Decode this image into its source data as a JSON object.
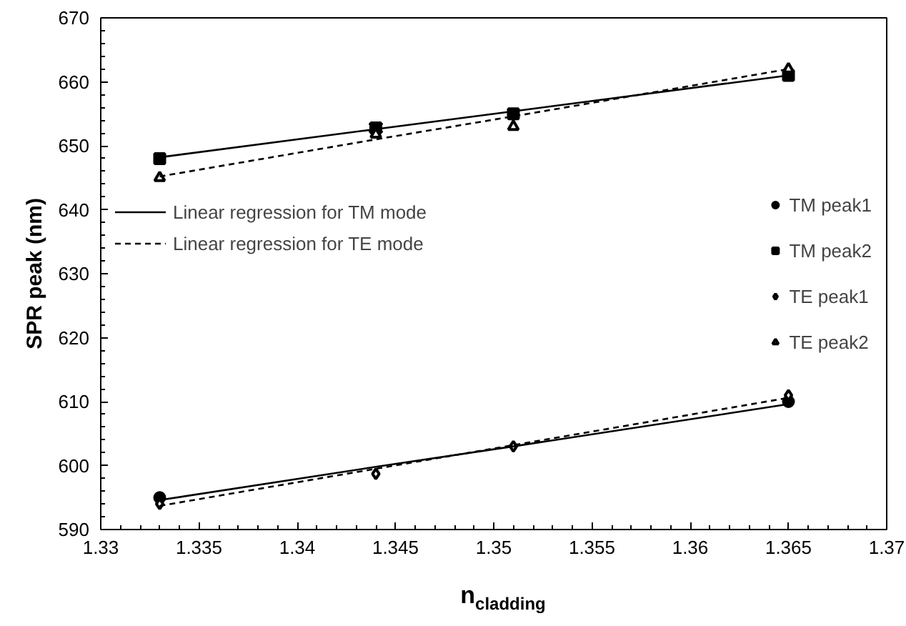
{
  "chart_data": {
    "type": "scatter",
    "xlabel": "n$_{cladding}$",
    "ylabel": "SPR peak (nm)",
    "x": [
      1.333,
      1.344,
      1.351,
      1.365
    ],
    "series": [
      {
        "name": "TM peak1",
        "color": "#000000",
        "marker": "circle",
        "values": [
          595,
          null,
          null,
          610
        ]
      },
      {
        "name": "TM peak2",
        "color": "#000000",
        "marker": "square",
        "values": [
          648,
          652.8,
          655,
          661
        ],
        "errors": [
          null,
          0.6,
          null,
          null
        ]
      },
      {
        "name": "TE peak1",
        "color": "#000000",
        "marker": "diamond",
        "values": [
          594,
          598.7,
          603,
          611
        ]
      },
      {
        "name": "TE peak2",
        "color": "#000000",
        "marker": "triangle",
        "values": [
          645,
          651.8,
          653,
          662
        ]
      },
      {
        "name": "Linear regression for TM mode",
        "type": "line",
        "line_style": "solid",
        "color": "#000000",
        "values": [
          594.6,
          599.8,
          603.0,
          609.6
        ]
      },
      {
        "type": "line",
        "line_style": "solid",
        "color": "#000000",
        "values": [
          648.2,
          652.6,
          655.4,
          661
        ]
      },
      {
        "name": "Linear regression for TE mode",
        "type": "line",
        "line_style": "dashed",
        "color": "#000000",
        "values": [
          593.7,
          599.5,
          603.2,
          610.6
        ]
      },
      {
        "type": "line",
        "line_style": "dashed",
        "color": "#000000",
        "values": [
          645.2,
          651.0,
          654.6,
          662
        ]
      }
    ],
    "xlim": [
      1.33,
      1.37
    ],
    "xticks": [
      1.33,
      1.335,
      1.34,
      1.345,
      1.35,
      1.355,
      1.36,
      1.365,
      1.37
    ],
    "ylim": [
      590,
      670
    ],
    "yticks": [
      590,
      600,
      610,
      620,
      630,
      640,
      650,
      660,
      670
    ],
    "grid": false,
    "legend": "right"
  }
}
